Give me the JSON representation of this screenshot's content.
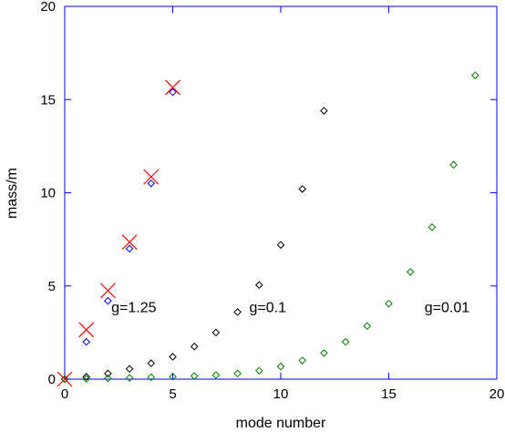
{
  "chart_data": {
    "type": "scatter",
    "xlabel": "mode number",
    "ylabel": "mass/m",
    "xlim": [
      0,
      20
    ],
    "ylim": [
      0,
      20
    ],
    "xticks": [
      0,
      5,
      10,
      15,
      20
    ],
    "yticks": [
      0,
      5,
      10,
      15,
      20
    ],
    "grid": false,
    "colors": {
      "frame": "#0000ff",
      "g125": "#0000ff",
      "g01": "#000000",
      "g001": "#008000",
      "reference": "#ff0000"
    },
    "series": [
      {
        "label": "g=1.25",
        "marker": "diamond",
        "color_key": "g125",
        "x": [
          0,
          1,
          2,
          3,
          4,
          5
        ],
        "y": [
          0,
          2.0,
          4.2,
          7.0,
          10.5,
          15.4
        ]
      },
      {
        "label": "g=0.1",
        "marker": "diamond",
        "color_key": "g01",
        "x": [
          0,
          1,
          2,
          3,
          4,
          5,
          6,
          7,
          8,
          9,
          10,
          11,
          12
        ],
        "y": [
          0,
          0.13,
          0.3,
          0.55,
          0.85,
          1.2,
          1.75,
          2.5,
          3.6,
          5.05,
          7.2,
          10.2,
          14.4
        ]
      },
      {
        "label": "g=0.01",
        "marker": "diamond",
        "color_key": "g001",
        "x": [
          0,
          1,
          2,
          3,
          4,
          5,
          6,
          7,
          8,
          9,
          10,
          11,
          12,
          13,
          14,
          15,
          16,
          17,
          18,
          19
        ],
        "y": [
          0,
          0.02,
          0.04,
          0.07,
          0.1,
          0.13,
          0.17,
          0.22,
          0.3,
          0.45,
          0.68,
          1.0,
          1.4,
          2.0,
          2.85,
          4.05,
          5.75,
          8.15,
          11.5,
          16.3
        ]
      },
      {
        "label": "",
        "marker": "cross",
        "color_key": "reference",
        "x": [
          0,
          1,
          2,
          3,
          4,
          5
        ],
        "y": [
          0,
          2.65,
          4.75,
          7.35,
          10.85,
          15.65
        ]
      }
    ],
    "annotations": [
      {
        "text": "g=1.25",
        "x": 3.2,
        "y": 3.6
      },
      {
        "text": "g=0.1",
        "x": 9.4,
        "y": 3.6
      },
      {
        "text": "g=0.01",
        "x": 17.7,
        "y": 3.6
      }
    ]
  }
}
